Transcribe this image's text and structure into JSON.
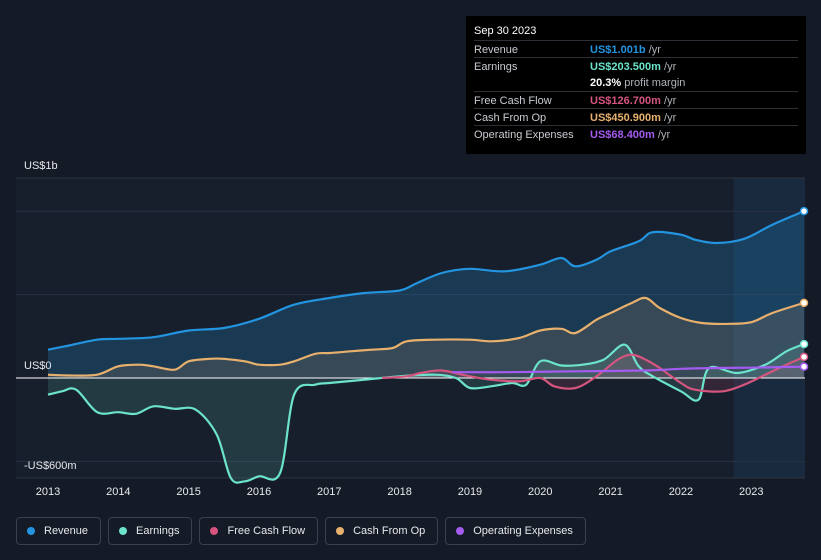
{
  "tooltip": {
    "date": "Sep 30 2023",
    "rows": [
      {
        "label": "Revenue",
        "value": "US$1.001b",
        "unit": " /yr",
        "color": "#2394df"
      },
      {
        "label": "Earnings",
        "value": "US$203.500m",
        "unit": " /yr",
        "color": "#6ce3cb"
      },
      {
        "label": "",
        "value": "20.3%",
        "unit": " profit margin",
        "color": "#ffffff"
      },
      {
        "label": "Free Cash Flow",
        "value": "US$126.700m",
        "unit": " /yr",
        "color": "#d5557f"
      },
      {
        "label": "Cash From Op",
        "value": "US$450.900m",
        "unit": " /yr",
        "color": "#e8b06d"
      },
      {
        "label": "Operating Expenses",
        "value": "US$68.400m",
        "unit": " /yr",
        "color": "#a45cf0"
      }
    ]
  },
  "legend": [
    {
      "label": "Revenue",
      "color": "#2394df"
    },
    {
      "label": "Earnings",
      "color": "#6ce3cb"
    },
    {
      "label": "Free Cash Flow",
      "color": "#d5557f"
    },
    {
      "label": "Cash From Op",
      "color": "#e8b06d"
    },
    {
      "label": "Operating Expenses",
      "color": "#a45cf0"
    }
  ],
  "chart_data": {
    "type": "area",
    "title": "",
    "xlabel": "",
    "ylabel": "",
    "unit": "US$ millions",
    "y_top_label": "US$1b",
    "y_zero_label": "US$0",
    "y_bottom_label": "-US$600m",
    "ylim": [
      -600,
      1200
    ],
    "xlim": [
      2013.0,
      2023.75
    ],
    "x_ticks": [
      "2013",
      "2014",
      "2015",
      "2016",
      "2017",
      "2018",
      "2019",
      "2020",
      "2021",
      "2022",
      "2023"
    ],
    "highlight_from": 2022.75,
    "series": [
      {
        "name": "Revenue",
        "color": "#2394df",
        "fill": true,
        "points": [
          [
            2013.0,
            170
          ],
          [
            2013.3,
            195
          ],
          [
            2013.7,
            230
          ],
          [
            2014.0,
            235
          ],
          [
            2014.5,
            245
          ],
          [
            2015.0,
            285
          ],
          [
            2015.5,
            300
          ],
          [
            2016.0,
            355
          ],
          [
            2016.5,
            440
          ],
          [
            2017.0,
            480
          ],
          [
            2017.5,
            510
          ],
          [
            2018.0,
            525
          ],
          [
            2018.25,
            570
          ],
          [
            2018.6,
            630
          ],
          [
            2019.0,
            655
          ],
          [
            2019.5,
            640
          ],
          [
            2020.0,
            680
          ],
          [
            2020.3,
            720
          ],
          [
            2020.5,
            670
          ],
          [
            2020.8,
            710
          ],
          [
            2021.0,
            760
          ],
          [
            2021.4,
            820
          ],
          [
            2021.6,
            875
          ],
          [
            2022.0,
            860
          ],
          [
            2022.2,
            830
          ],
          [
            2022.5,
            810
          ],
          [
            2022.9,
            835
          ],
          [
            2023.3,
            920
          ],
          [
            2023.75,
            1001
          ]
        ]
      },
      {
        "name": "Earnings",
        "color": "#6ce3cb",
        "fill": true,
        "points": [
          [
            2013.0,
            -100
          ],
          [
            2013.2,
            -80
          ],
          [
            2013.4,
            -70
          ],
          [
            2013.7,
            -205
          ],
          [
            2014.0,
            -205
          ],
          [
            2014.25,
            -215
          ],
          [
            2014.5,
            -170
          ],
          [
            2014.8,
            -185
          ],
          [
            2015.1,
            -190
          ],
          [
            2015.4,
            -340
          ],
          [
            2015.6,
            -600
          ],
          [
            2015.8,
            -620
          ],
          [
            2016.0,
            -590
          ],
          [
            2016.3,
            -570
          ],
          [
            2016.5,
            -100
          ],
          [
            2016.8,
            -40
          ],
          [
            2017.0,
            -30
          ],
          [
            2017.5,
            -10
          ],
          [
            2018.0,
            10
          ],
          [
            2018.5,
            20
          ],
          [
            2018.8,
            0
          ],
          [
            2019.0,
            -60
          ],
          [
            2019.3,
            -50
          ],
          [
            2019.6,
            -30
          ],
          [
            2019.8,
            -40
          ],
          [
            2020.0,
            100
          ],
          [
            2020.3,
            75
          ],
          [
            2020.6,
            80
          ],
          [
            2020.9,
            110
          ],
          [
            2021.2,
            200
          ],
          [
            2021.4,
            70
          ],
          [
            2021.6,
            10
          ],
          [
            2022.0,
            -80
          ],
          [
            2022.25,
            -130
          ],
          [
            2022.4,
            60
          ],
          [
            2022.8,
            30
          ],
          [
            2023.2,
            80
          ],
          [
            2023.5,
            160
          ],
          [
            2023.75,
            203.5
          ]
        ]
      },
      {
        "name": "Free Cash Flow",
        "color": "#d5557f",
        "fill": true,
        "points": [
          [
            2017.75,
            0
          ],
          [
            2018.1,
            10
          ],
          [
            2018.3,
            30
          ],
          [
            2018.6,
            45
          ],
          [
            2019.0,
            10
          ],
          [
            2019.3,
            -10
          ],
          [
            2019.7,
            -20
          ],
          [
            2020.0,
            0
          ],
          [
            2020.2,
            -50
          ],
          [
            2020.5,
            -60
          ],
          [
            2020.8,
            10
          ],
          [
            2021.1,
            110
          ],
          [
            2021.3,
            140
          ],
          [
            2021.5,
            110
          ],
          [
            2021.7,
            60
          ],
          [
            2022.0,
            -30
          ],
          [
            2022.2,
            -70
          ],
          [
            2022.6,
            -80
          ],
          [
            2022.9,
            -40
          ],
          [
            2023.2,
            20
          ],
          [
            2023.5,
            80
          ],
          [
            2023.75,
            126.7
          ]
        ]
      },
      {
        "name": "Cash From Op",
        "color": "#e8b06d",
        "fill": true,
        "points": [
          [
            2013.0,
            20
          ],
          [
            2013.3,
            15
          ],
          [
            2013.7,
            20
          ],
          [
            2014.0,
            70
          ],
          [
            2014.3,
            80
          ],
          [
            2014.5,
            70
          ],
          [
            2014.8,
            50
          ],
          [
            2015.0,
            100
          ],
          [
            2015.3,
            115
          ],
          [
            2015.5,
            115
          ],
          [
            2015.8,
            100
          ],
          [
            2016.0,
            80
          ],
          [
            2016.3,
            80
          ],
          [
            2016.5,
            100
          ],
          [
            2016.8,
            145
          ],
          [
            2017.0,
            150
          ],
          [
            2017.3,
            160
          ],
          [
            2017.6,
            170
          ],
          [
            2017.9,
            180
          ],
          [
            2018.1,
            220
          ],
          [
            2018.5,
            230
          ],
          [
            2019.0,
            230
          ],
          [
            2019.3,
            220
          ],
          [
            2019.7,
            240
          ],
          [
            2020.0,
            285
          ],
          [
            2020.3,
            295
          ],
          [
            2020.5,
            270
          ],
          [
            2020.8,
            350
          ],
          [
            2021.0,
            390
          ],
          [
            2021.3,
            450
          ],
          [
            2021.5,
            480
          ],
          [
            2021.7,
            420
          ],
          [
            2022.0,
            360
          ],
          [
            2022.3,
            330
          ],
          [
            2022.7,
            325
          ],
          [
            2023.0,
            335
          ],
          [
            2023.3,
            390
          ],
          [
            2023.75,
            450.9
          ]
        ]
      },
      {
        "name": "Operating Expenses",
        "color": "#a45cf0",
        "fill": false,
        "points": [
          [
            2018.75,
            35
          ],
          [
            2019.5,
            35
          ],
          [
            2020.5,
            40
          ],
          [
            2021.5,
            45
          ],
          [
            2022.0,
            55
          ],
          [
            2022.5,
            60
          ],
          [
            2023.0,
            62
          ],
          [
            2023.75,
            68.4
          ]
        ]
      }
    ]
  }
}
